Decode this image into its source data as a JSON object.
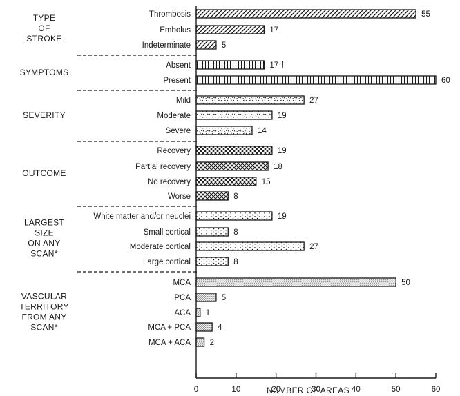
{
  "chart_data": {
    "type": "bar",
    "orientation": "horizontal",
    "xlabel": "NUMBER OF AREAS",
    "xlim": [
      0,
      60
    ],
    "xticks": [
      0,
      10,
      20,
      30,
      40,
      50,
      60
    ],
    "groups": [
      {
        "label": [
          "TYPE",
          "OF",
          "STROKE"
        ],
        "pattern": "diagonal",
        "categories": [
          "Thrombosis",
          "Embolus",
          "Indeterminate"
        ],
        "values": [
          55,
          17,
          5
        ],
        "value_labels": [
          "55",
          "17",
          "5"
        ]
      },
      {
        "label": [
          "SYMPTOMS"
        ],
        "pattern": "vertical",
        "categories": [
          "Absent",
          "Present"
        ],
        "values": [
          17,
          60
        ],
        "value_labels": [
          "17 †",
          "60"
        ]
      },
      {
        "label": [
          "SEVERITY"
        ],
        "pattern": "speckle",
        "categories": [
          "Mild",
          "Moderate",
          "Severe"
        ],
        "values": [
          27,
          19,
          14
        ],
        "value_labels": [
          "27",
          "19",
          "14"
        ]
      },
      {
        "label": [
          "OUTCOME"
        ],
        "pattern": "crosshatch",
        "categories": [
          "Recovery",
          "Partial recovery",
          "No recovery",
          "Worse"
        ],
        "values": [
          19,
          18,
          15,
          8
        ],
        "value_labels": [
          "19",
          "18",
          "15",
          "8"
        ]
      },
      {
        "label": [
          "LARGEST",
          "SIZE",
          "ON ANY",
          "SCAN*"
        ],
        "pattern": "dots",
        "categories": [
          "White matter and/or neuclei",
          "Small cortical",
          "Moderate cortical",
          "Large cortical"
        ],
        "values": [
          19,
          8,
          27,
          8
        ],
        "value_labels": [
          "19",
          "8",
          "27",
          "8"
        ]
      },
      {
        "label": [
          "VASCULAR",
          "TERRITORY",
          "FROM ANY",
          "SCAN*"
        ],
        "pattern": "stipple",
        "categories": [
          "MCA",
          "PCA",
          "ACA",
          "MCA + PCA",
          "MCA + ACA"
        ],
        "values": [
          50,
          5,
          1,
          4,
          2
        ],
        "value_labels": [
          "50",
          "5",
          "1",
          "4",
          "2"
        ]
      }
    ]
  }
}
